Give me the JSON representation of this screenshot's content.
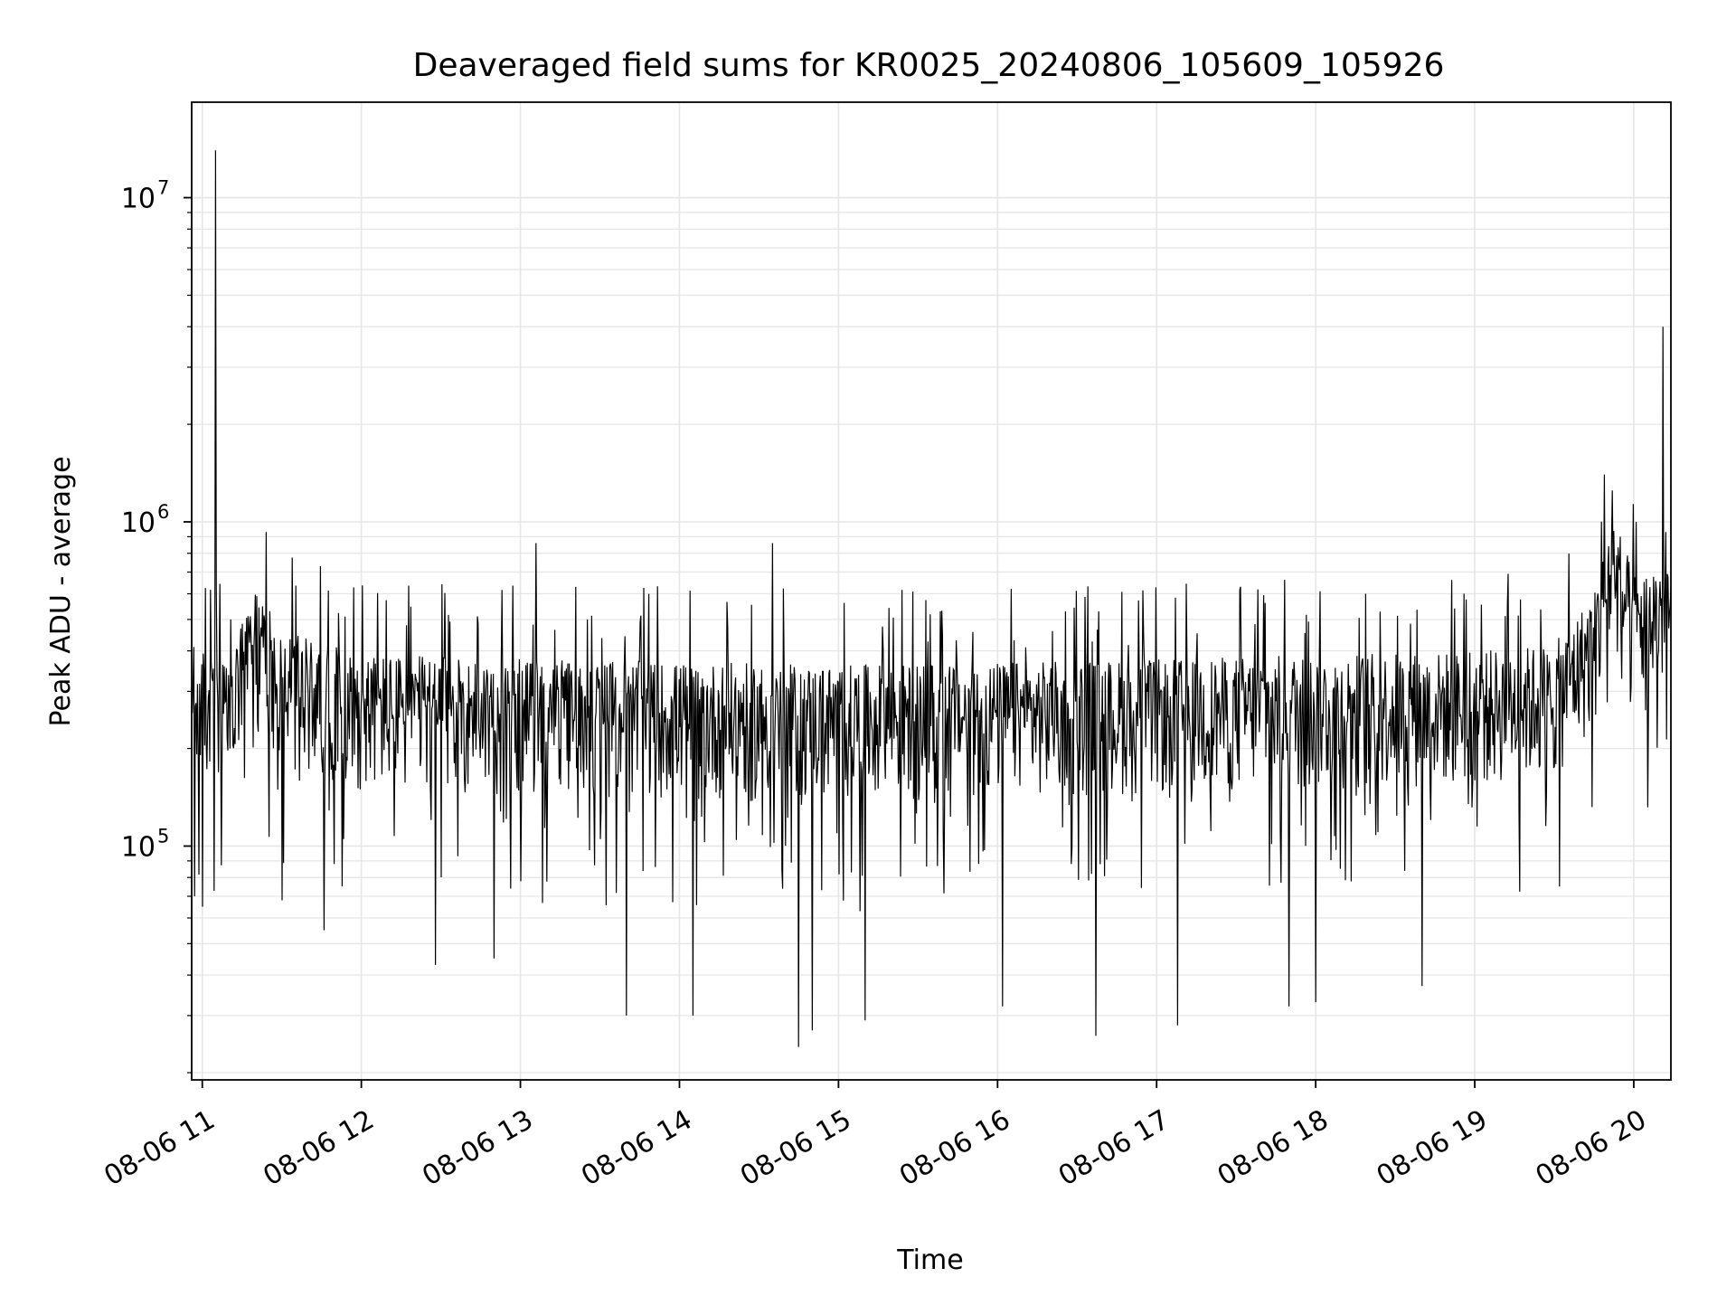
{
  "chart_data": {
    "type": "line",
    "title": "Deaveraged field sums for KR0025_20240806_105609_105926",
    "xlabel": "Time",
    "ylabel": "Peak ADU - average",
    "x_axis": {
      "kind": "datetime",
      "range": [
        "2024-08-06 10:56",
        "2024-08-06 20:14"
      ],
      "tick_labels": [
        "08-06 11",
        "08-06 12",
        "08-06 13",
        "08-06 14",
        "08-06 15",
        "08-06 16",
        "08-06 17",
        "08-06 18",
        "08-06 19",
        "08-06 20"
      ],
      "tick_label_rotation": 30
    },
    "y_axis": {
      "scale": "log",
      "range": [
        19000,
        19700000
      ],
      "tick_labels": [
        {
          "value": 100000,
          "base": "10",
          "exp": "5"
        },
        {
          "value": 1000000,
          "base": "10",
          "exp": "6"
        },
        {
          "value": 10000000,
          "base": "10",
          "exp": "7"
        }
      ]
    },
    "grid": true,
    "grid_color": "#e6e6e6",
    "line_color": "#000000",
    "series": [
      {
        "baseline": [
          {
            "x": "2024-08-06 10:56",
            "y": 290000
          },
          {
            "x": "2024-08-06 11:10",
            "y": 250000
          },
          {
            "x": "2024-08-06 11:20",
            "y": 450000
          },
          {
            "x": "2024-08-06 11:30",
            "y": 320000
          },
          {
            "x": "2024-08-06 12:00",
            "y": 270000
          },
          {
            "x": "2024-08-06 13:00",
            "y": 260000
          },
          {
            "x": "2024-08-06 14:00",
            "y": 255000
          },
          {
            "x": "2024-08-06 15:00",
            "y": 250000
          },
          {
            "x": "2024-08-06 16:00",
            "y": 255000
          },
          {
            "x": "2024-08-06 17:00",
            "y": 260000
          },
          {
            "x": "2024-08-06 18:00",
            "y": 270000
          },
          {
            "x": "2024-08-06 19:00",
            "y": 275000
          },
          {
            "x": "2024-08-06 19:30",
            "y": 290000
          },
          {
            "x": "2024-08-06 19:45",
            "y": 420000
          },
          {
            "x": "2024-08-06 19:52",
            "y": 750000
          },
          {
            "x": "2024-08-06 20:00",
            "y": 480000
          },
          {
            "x": "2024-08-06 20:14",
            "y": 560000
          }
        ],
        "spikes": [
          {
            "x": "2024-08-06 11:05",
            "y": 14000000
          },
          {
            "x": "2024-08-06 11:24",
            "y": 930000
          },
          {
            "x": "2024-08-06 13:06",
            "y": 860000
          },
          {
            "x": "2024-08-06 14:35",
            "y": 860000
          },
          {
            "x": "2024-08-06 19:49",
            "y": 1400000
          },
          {
            "x": "2024-08-06 19:52",
            "y": 1250000
          },
          {
            "x": "2024-08-06 20:01",
            "y": 1000000
          },
          {
            "x": "2024-08-06 20:11",
            "y": 4000000
          },
          {
            "x": "2024-08-06 20:12",
            "y": 930000
          }
        ],
        "dips": [
          {
            "x": "2024-08-06 10:57",
            "y": 70000
          },
          {
            "x": "2024-08-06 11:00",
            "y": 65000
          },
          {
            "x": "2024-08-06 11:30",
            "y": 68000
          },
          {
            "x": "2024-08-06 11:46",
            "y": 55000
          },
          {
            "x": "2024-08-06 12:28",
            "y": 43000
          },
          {
            "x": "2024-08-06 12:50",
            "y": 45000
          },
          {
            "x": "2024-08-06 13:40",
            "y": 30000
          },
          {
            "x": "2024-08-06 14:05",
            "y": 30000
          },
          {
            "x": "2024-08-06 14:45",
            "y": 24000
          },
          {
            "x": "2024-08-06 14:50",
            "y": 27000
          },
          {
            "x": "2024-08-06 15:10",
            "y": 29000
          },
          {
            "x": "2024-08-06 16:02",
            "y": 32000
          },
          {
            "x": "2024-08-06 16:37",
            "y": 26000
          },
          {
            "x": "2024-08-06 17:08",
            "y": 28000
          },
          {
            "x": "2024-08-06 17:50",
            "y": 32000
          },
          {
            "x": "2024-08-06 18:00",
            "y": 33000
          },
          {
            "x": "2024-08-06 18:40",
            "y": 37000
          },
          {
            "x": "2024-08-06 19:32",
            "y": 75000
          }
        ]
      }
    ]
  }
}
